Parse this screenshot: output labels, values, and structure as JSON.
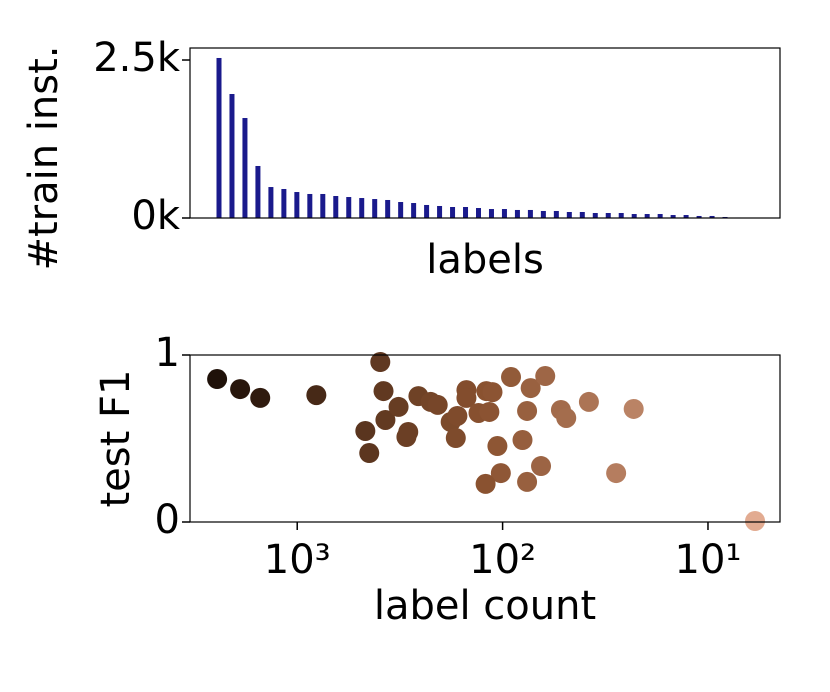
{
  "chart_data": [
    {
      "type": "bar",
      "ylabel": "#train inst.",
      "xlabel": "labels",
      "color": "#1a1a8c",
      "values": [
        2532,
        1962,
        1582,
        823,
        490,
        459,
        411,
        380,
        380,
        348,
        332,
        316,
        300,
        285,
        253,
        237,
        206,
        190,
        174,
        174,
        158,
        142,
        142,
        127,
        127,
        111,
        111,
        95,
        95,
        79,
        79,
        79,
        63,
        63,
        63,
        47,
        47,
        32,
        32,
        16,
        8
      ],
      "ylim": [
        0,
        2690
      ],
      "yticks": [
        {
          "value": 0,
          "label": "0k"
        },
        {
          "value": 2500,
          "label": "2.5k"
        }
      ]
    },
    {
      "type": "scatter",
      "ylabel": "test F1",
      "xlabel": "label count",
      "xscale": "log",
      "cmap": [
        "#140a05",
        "#8a5230",
        "#eab39a"
      ],
      "x": [
        2455,
        1897,
        1514,
        807,
        394,
        380,
        372,
        321,
        466,
        446,
        288,
        294,
        257,
        224,
        207,
        179,
        166,
        169,
        150,
        150,
        131,
        116,
        120,
        112,
        91,
        73,
        76,
        80,
        62,
        106,
        102,
        121,
        76,
        65,
        52,
        49,
        38,
        28,
        23,
        5.9
      ],
      "values": [
        0.856,
        0.796,
        0.743,
        0.76,
        0.958,
        0.784,
        0.611,
        0.689,
        0.545,
        0.413,
        0.539,
        0.509,
        0.754,
        0.719,
        0.701,
        0.599,
        0.635,
        0.503,
        0.79,
        0.743,
        0.653,
        0.659,
        0.784,
        0.778,
        0.868,
        0.802,
        0.665,
        0.491,
        0.874,
        0.455,
        0.293,
        0.228,
        0.24,
        0.335,
        0.671,
        0.623,
        0.719,
        0.293,
        0.677,
        0.006
      ],
      "xlim": [
        3327,
        4.46
      ],
      "xticks": [
        {
          "value": 1000,
          "label": "10³"
        },
        {
          "value": 100,
          "label": "10²"
        },
        {
          "value": 10,
          "label": "10¹"
        }
      ],
      "ylim": [
        0,
        1
      ],
      "yticks": [
        0,
        1
      ]
    }
  ]
}
